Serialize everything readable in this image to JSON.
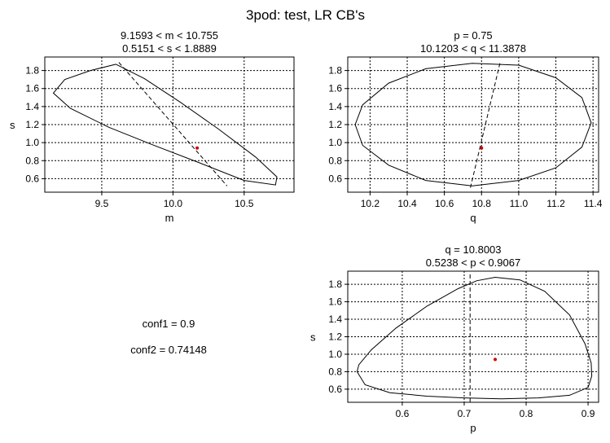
{
  "figure": {
    "title": "3pod: test, LR CB's",
    "conf1": "conf1 = 0.9",
    "conf2": "conf2 = 0.74148"
  },
  "chart_data": [
    {
      "type": "line",
      "title_line1": "9.1593 < m < 10.755",
      "title_line2": "0.5151 < s < 1.8889",
      "xlabel": "m",
      "ylabel": "s",
      "xlim": [
        9.1,
        10.85
      ],
      "ylim": [
        0.45,
        1.95
      ],
      "xticks": [
        9.5,
        10.0,
        10.5
      ],
      "xtick_labels": [
        "9.5",
        "10.0",
        "10.5"
      ],
      "yticks": [
        0.6,
        0.8,
        1.0,
        1.2,
        1.4,
        1.6,
        1.8
      ],
      "ytick_labels": [
        "0.6",
        "0.8",
        "1.0",
        "1.2",
        "1.4",
        "1.6",
        "1.8"
      ],
      "grid": true,
      "series": [
        {
          "style": "solid",
          "color": "#000000",
          "x": [
            9.6,
            9.42,
            9.24,
            9.16,
            9.28,
            9.55,
            9.85,
            10.18,
            10.5,
            10.72,
            10.73,
            10.58,
            10.32,
            10.05,
            9.8,
            9.6
          ],
          "y": [
            1.87,
            1.8,
            1.7,
            1.55,
            1.38,
            1.17,
            0.98,
            0.78,
            0.58,
            0.53,
            0.62,
            0.84,
            1.15,
            1.45,
            1.71,
            1.87
          ]
        },
        {
          "style": "dashed",
          "color": "#000000",
          "x": [
            9.62,
            10.38
          ],
          "y": [
            1.89,
            0.52
          ]
        }
      ],
      "point": {
        "x": 10.17,
        "y": 0.94,
        "color": "#cc0000"
      }
    },
    {
      "type": "line",
      "title_line1": "p = 0.75",
      "title_line2": "10.1203 < q < 11.3878",
      "xlabel": "q",
      "ylabel": "",
      "xlim": [
        10.08,
        11.43
      ],
      "ylim": [
        0.45,
        1.95
      ],
      "xticks": [
        10.2,
        10.4,
        10.6,
        10.8,
        11.0,
        11.2,
        11.4
      ],
      "xtick_labels": [
        "10.2",
        "10.4",
        "10.6",
        "10.8",
        "11.0",
        "11.2",
        "11.4"
      ],
      "yticks": [
        0.6,
        0.8,
        1.0,
        1.2,
        1.4,
        1.6,
        1.8
      ],
      "ytick_labels": [
        "0.6",
        "0.8",
        "1.0",
        "1.2",
        "1.4",
        "1.6",
        "1.8"
      ],
      "grid": true,
      "series": [
        {
          "style": "solid",
          "color": "#000000",
          "x": [
            10.12,
            10.16,
            10.3,
            10.5,
            10.75,
            11.0,
            11.2,
            11.34,
            11.39,
            11.34,
            11.2,
            11.0,
            10.75,
            10.5,
            10.3,
            10.16,
            10.12
          ],
          "y": [
            1.2,
            1.42,
            1.66,
            1.82,
            1.88,
            1.86,
            1.72,
            1.5,
            1.22,
            0.95,
            0.72,
            0.58,
            0.52,
            0.58,
            0.75,
            0.97,
            1.2
          ]
        },
        {
          "style": "dashed",
          "color": "#000000",
          "x": [
            10.74,
            10.9
          ],
          "y": [
            0.5,
            1.89
          ]
        }
      ],
      "point": {
        "x": 10.8,
        "y": 0.94,
        "color": "#cc0000"
      }
    },
    {
      "type": "line",
      "title_line1": "q = 10.8003",
      "title_line2": "0.5238 < p < 0.9067",
      "xlabel": "p",
      "ylabel": "s",
      "xlim": [
        0.512,
        0.917
      ],
      "ylim": [
        0.45,
        1.95
      ],
      "xticks": [
        0.6,
        0.7,
        0.8,
        0.9
      ],
      "xtick_labels": [
        "0.6",
        "0.7",
        "0.8",
        "0.9"
      ],
      "yticks": [
        0.6,
        0.8,
        1.0,
        1.2,
        1.4,
        1.6,
        1.8
      ],
      "ytick_labels": [
        "0.6",
        "0.8",
        "1.0",
        "1.2",
        "1.4",
        "1.6",
        "1.8"
      ],
      "grid": true,
      "series": [
        {
          "style": "solid",
          "color": "#000000",
          "x": [
            0.527,
            0.53,
            0.55,
            0.59,
            0.64,
            0.69,
            0.72,
            0.75,
            0.79,
            0.83,
            0.87,
            0.895,
            0.905,
            0.906,
            0.9,
            0.87,
            0.82,
            0.76,
            0.7,
            0.64,
            0.58,
            0.54,
            0.527
          ],
          "y": [
            0.8,
            0.88,
            1.05,
            1.3,
            1.55,
            1.75,
            1.84,
            1.88,
            1.85,
            1.72,
            1.45,
            1.12,
            0.9,
            0.75,
            0.62,
            0.53,
            0.5,
            0.49,
            0.5,
            0.52,
            0.56,
            0.65,
            0.8
          ]
        },
        {
          "style": "dashed",
          "color": "#000000",
          "x": [
            0.7095,
            0.7095
          ],
          "y": [
            0.45,
            1.93
          ]
        }
      ],
      "point": {
        "x": 0.75,
        "y": 0.94,
        "color": "#cc0000"
      }
    }
  ]
}
